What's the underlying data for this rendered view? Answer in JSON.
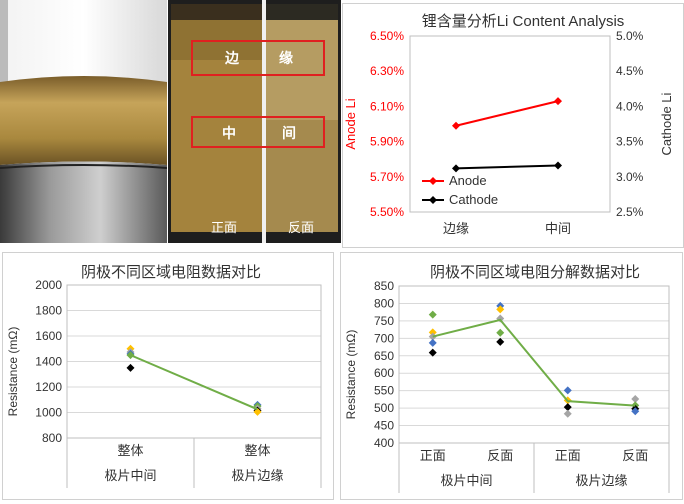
{
  "photos": {
    "middle": {
      "label_edge_1": "边",
      "label_edge_2": "缘",
      "label_mid_1": "中",
      "label_mid_2": "间",
      "front": "正面",
      "back": "反面"
    }
  },
  "colors": {
    "anode": "#ff0000",
    "cathode": "#000000",
    "trend": "#70ad47",
    "yellow": "#ffc000",
    "blue": "#4472c4",
    "gray": "#a5a5a5",
    "red_box": "#e02020"
  },
  "chart_data": [
    {
      "id": "li-content",
      "type": "line",
      "title": "锂含量分析Li Content Analysis",
      "categories": [
        "边缘",
        "中间"
      ],
      "ylabel_left": "Anode Li",
      "ylabel_right": "Cathode Li",
      "ylim_left": [
        5.5,
        6.5
      ],
      "ylim_right": [
        2.5,
        5.0
      ],
      "yticks_left": [
        "5.50%",
        "5.70%",
        "5.90%",
        "6.10%",
        "6.30%",
        "6.50%"
      ],
      "yticks_right": [
        "2.5%",
        "3.0%",
        "3.5%",
        "4.0%",
        "4.5%",
        "5.0%"
      ],
      "legend_position": "bottom-left",
      "series": [
        {
          "name": "Anode",
          "axis": "left",
          "color": "#ff0000",
          "values": [
            5.99,
            6.13
          ]
        },
        {
          "name": "Cathode",
          "axis": "right",
          "color": "#000000",
          "values": [
            3.12,
            3.16
          ]
        }
      ]
    },
    {
      "id": "resistance-region",
      "type": "scatter",
      "title": "阴极不同区域电阻数据对比",
      "ylabel": "Resistance (mΩ)",
      "ylim": [
        800,
        2000
      ],
      "yticks": [
        "800",
        "1000",
        "1200",
        "1400",
        "1600",
        "1800",
        "2000"
      ],
      "categories": [
        "整体",
        "整体"
      ],
      "groups": [
        "极片中间",
        "极片边缘"
      ],
      "points": [
        {
          "x": 0,
          "y": 1500,
          "color": "#ffc000"
        },
        {
          "x": 0,
          "y": 1475,
          "color": "#a5a5a5"
        },
        {
          "x": 0,
          "y": 1460,
          "color": "#4472c4"
        },
        {
          "x": 0,
          "y": 1450,
          "color": "#70ad47"
        },
        {
          "x": 0,
          "y": 1350,
          "color": "#000000"
        },
        {
          "x": 1,
          "y": 1060,
          "color": "#4472c4"
        },
        {
          "x": 1,
          "y": 1050,
          "color": "#70ad47"
        },
        {
          "x": 1,
          "y": 1030,
          "color": "#a5a5a5"
        },
        {
          "x": 1,
          "y": 1015,
          "color": "#000000"
        },
        {
          "x": 1,
          "y": 1005,
          "color": "#ffc000"
        }
      ],
      "trend": [
        {
          "x": 0,
          "y": 1450
        },
        {
          "x": 1,
          "y": 1025
        }
      ]
    },
    {
      "id": "resistance-breakdown",
      "type": "scatter",
      "title": "阴极不同区域电阻分解数据对比",
      "ylabel": "Resistance (mΩ)",
      "ylim": [
        400,
        850
      ],
      "yticks": [
        "400",
        "450",
        "500",
        "550",
        "600",
        "650",
        "700",
        "750",
        "800",
        "850"
      ],
      "categories": [
        "正面",
        "反面",
        "正面",
        "反面"
      ],
      "groups": [
        "极片中间",
        "极片边缘"
      ],
      "points": [
        {
          "x": 0,
          "y": 768,
          "color": "#70ad47"
        },
        {
          "x": 0,
          "y": 717,
          "color": "#ffc000"
        },
        {
          "x": 0,
          "y": 705,
          "color": "#a5a5a5"
        },
        {
          "x": 0,
          "y": 687,
          "color": "#4472c4"
        },
        {
          "x": 0,
          "y": 659,
          "color": "#000000"
        },
        {
          "x": 1,
          "y": 793,
          "color": "#4472c4"
        },
        {
          "x": 1,
          "y": 783,
          "color": "#ffc000"
        },
        {
          "x": 1,
          "y": 757,
          "color": "#a5a5a5"
        },
        {
          "x": 1,
          "y": 716,
          "color": "#70ad47"
        },
        {
          "x": 1,
          "y": 690,
          "color": "#000000"
        },
        {
          "x": 2,
          "y": 551,
          "color": "#4472c4"
        },
        {
          "x": 2,
          "y": 522,
          "color": "#ffc000"
        },
        {
          "x": 2,
          "y": 503,
          "color": "#000000"
        },
        {
          "x": 2,
          "y": 484,
          "color": "#a5a5a5"
        },
        {
          "x": 3,
          "y": 526,
          "color": "#a5a5a5"
        },
        {
          "x": 3,
          "y": 508,
          "color": "#70ad47"
        },
        {
          "x": 3,
          "y": 498,
          "color": "#000000"
        },
        {
          "x": 3,
          "y": 491,
          "color": "#4472c4"
        }
      ],
      "trend": [
        {
          "x": 0,
          "y": 705
        },
        {
          "x": 1,
          "y": 753
        },
        {
          "x": 2,
          "y": 520
        },
        {
          "x": 3,
          "y": 507
        }
      ]
    }
  ]
}
